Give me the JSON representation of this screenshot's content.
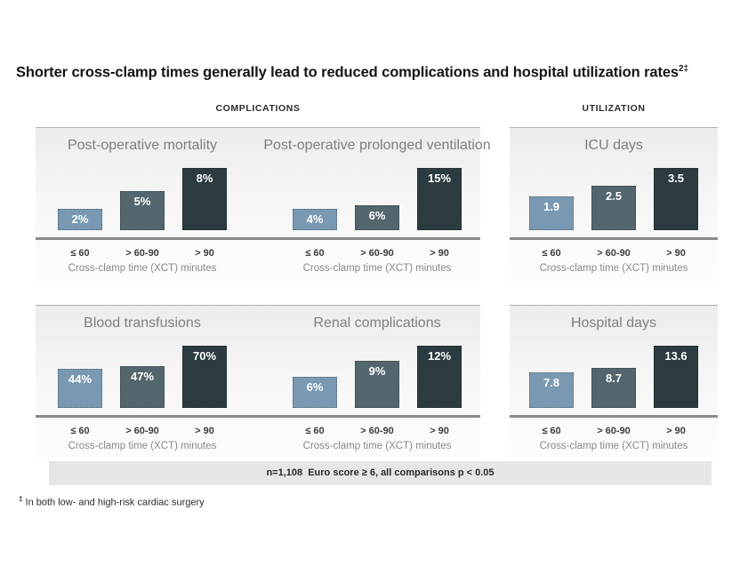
{
  "page": {
    "title": "Shorter cross-clamp times generally lead to reduced complications and hospital utilization rates",
    "title_superscript": "2‡"
  },
  "sections": {
    "complications_label": "COMPLICATIONS",
    "utilization_label": "UTILIZATION"
  },
  "axis": {
    "tick_labels": [
      "≤ 60",
      "> 60-90",
      "> 90"
    ],
    "caption": "Cross-clamp time (XCT) minutes"
  },
  "footer": {
    "note": "n=1,108  Euro score ≥ 6, all comparisons p < 0.05"
  },
  "footnote": {
    "symbol": "‡",
    "text": "In both low- and high-risk cardiac surgery"
  },
  "colors": {
    "bars": [
      "#7899b1",
      "#54666d",
      "#2c3b3f"
    ],
    "baseline": "#8a8a8a",
    "top_rule": "#b0b0b0",
    "footer_band": "#e6e6e6",
    "chart_title": "#7e7f82"
  },
  "chart_data": [
    {
      "type": "bar",
      "section": "COMPLICATIONS",
      "title": "Post-operative mortality",
      "categories": [
        "≤ 60",
        "> 60-90",
        "> 90"
      ],
      "values": [
        2,
        5,
        8
      ],
      "bar_labels": [
        "2%",
        "5%",
        "8%"
      ],
      "unit": "%",
      "xlabel": "Cross-clamp time (XCT) minutes"
    },
    {
      "type": "bar",
      "section": "COMPLICATIONS",
      "title": "Post-operative prolonged ventilation",
      "categories": [
        "≤ 60",
        "> 60-90",
        "> 90"
      ],
      "values": [
        4,
        6,
        15
      ],
      "bar_labels": [
        "4%",
        "6%",
        "15%"
      ],
      "unit": "%",
      "xlabel": "Cross-clamp time (XCT) minutes"
    },
    {
      "type": "bar",
      "section": "UTILIZATION",
      "title": "ICU days",
      "categories": [
        "≤ 60",
        "> 60-90",
        "> 90"
      ],
      "values": [
        1.9,
        2.5,
        3.5
      ],
      "bar_labels": [
        "1.9",
        "2.5",
        "3.5"
      ],
      "unit": "days",
      "xlabel": "Cross-clamp time (XCT) minutes"
    },
    {
      "type": "bar",
      "section": "COMPLICATIONS",
      "title": "Blood transfusions",
      "categories": [
        "≤ 60",
        "> 60-90",
        "> 90"
      ],
      "values": [
        44,
        47,
        70
      ],
      "bar_labels": [
        "44%",
        "47%",
        "70%"
      ],
      "unit": "%",
      "xlabel": "Cross-clamp time (XCT) minutes"
    },
    {
      "type": "bar",
      "section": "COMPLICATIONS",
      "title": "Renal complications",
      "categories": [
        "≤ 60",
        "> 60-90",
        "> 90"
      ],
      "values": [
        6,
        9,
        12
      ],
      "bar_labels": [
        "6%",
        "9%",
        "12%"
      ],
      "unit": "%",
      "xlabel": "Cross-clamp time (XCT) minutes"
    },
    {
      "type": "bar",
      "section": "UTILIZATION",
      "title": "Hospital days",
      "categories": [
        "≤ 60",
        "> 60-90",
        "> 90"
      ],
      "values": [
        7.8,
        8.7,
        13.6
      ],
      "bar_labels": [
        "7.8",
        "8.7",
        "13.6"
      ],
      "unit": "days",
      "xlabel": "Cross-clamp time (XCT) minutes"
    }
  ]
}
